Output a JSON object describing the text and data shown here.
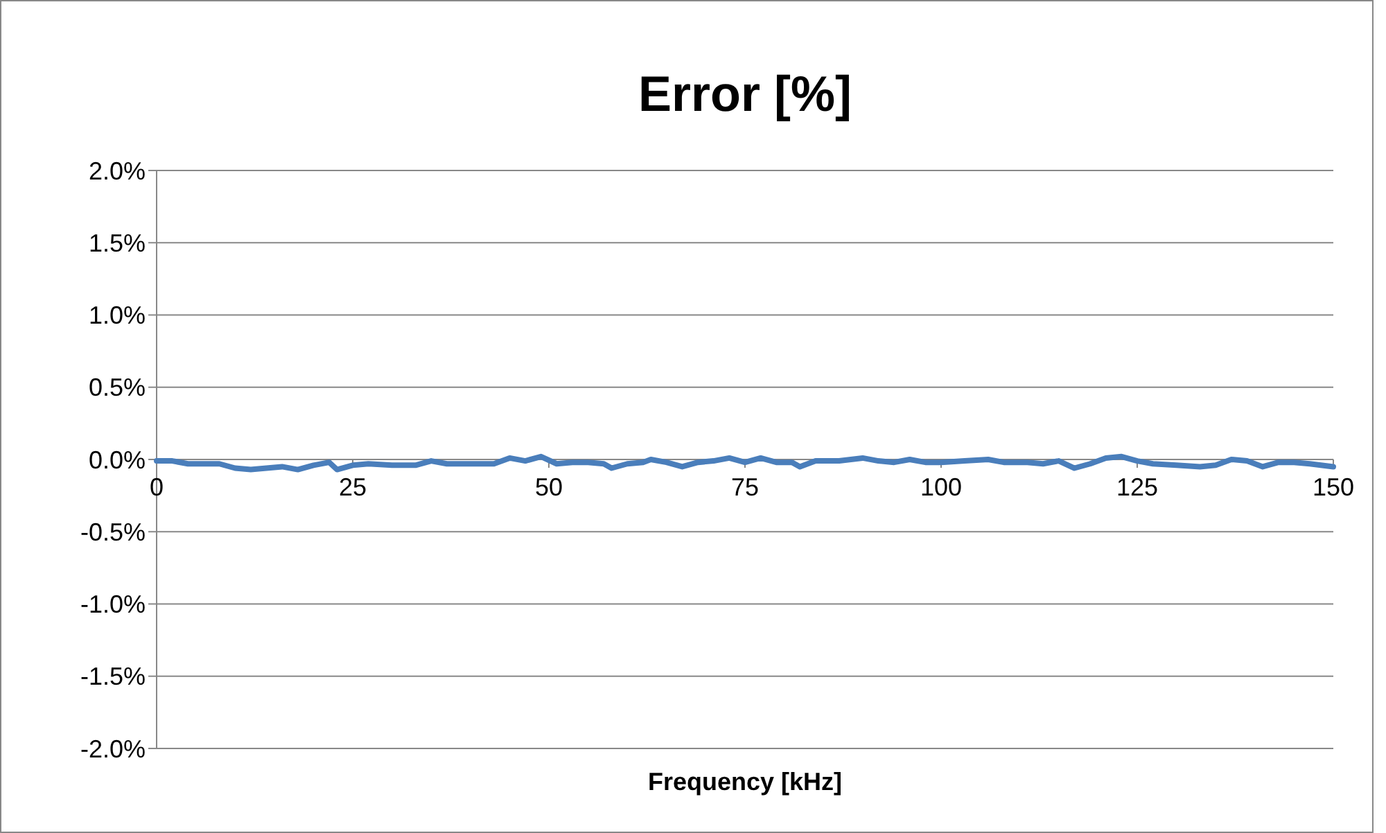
{
  "chart_data": {
    "type": "line",
    "title": "Error [%]",
    "xlabel": "Frequency [kHz]",
    "x": [
      0,
      2,
      4,
      6,
      8,
      10,
      12,
      14,
      16,
      18,
      20,
      22,
      23,
      25,
      27,
      30,
      33,
      35,
      37,
      40,
      43,
      45,
      47,
      49,
      51,
      53,
      55,
      57,
      58,
      60,
      62,
      63,
      65,
      67,
      69,
      71,
      73,
      75,
      77,
      79,
      81,
      82,
      84,
      87,
      90,
      92,
      94,
      96,
      98,
      100,
      103,
      106,
      108,
      111,
      113,
      115,
      117,
      119,
      121,
      123,
      125,
      127,
      130,
      133,
      135,
      137,
      139,
      141,
      143,
      145,
      147,
      150
    ],
    "series": [
      {
        "color": "#4a7ebb",
        "values": [
          -0.01,
          -0.01,
          -0.03,
          -0.03,
          -0.03,
          -0.06,
          -0.07,
          -0.06,
          -0.05,
          -0.07,
          -0.04,
          -0.02,
          -0.07,
          -0.04,
          -0.03,
          -0.04,
          -0.04,
          -0.01,
          -0.03,
          -0.03,
          -0.03,
          0.01,
          -0.01,
          0.02,
          -0.03,
          -0.02,
          -0.02,
          -0.03,
          -0.06,
          -0.03,
          -0.02,
          0.0,
          -0.02,
          -0.05,
          -0.02,
          -0.01,
          0.01,
          -0.02,
          0.01,
          -0.02,
          -0.02,
          -0.05,
          -0.01,
          -0.01,
          0.01,
          -0.01,
          -0.02,
          0.0,
          -0.02,
          -0.02,
          -0.01,
          0.0,
          -0.02,
          -0.02,
          -0.03,
          -0.01,
          -0.06,
          -0.03,
          0.01,
          0.02,
          -0.01,
          -0.03,
          -0.04,
          -0.05,
          -0.04,
          0.0,
          -0.01,
          -0.05,
          -0.02,
          -0.02,
          -0.03,
          -0.05
        ]
      }
    ],
    "xlim": [
      0,
      150
    ],
    "xticks": [
      0,
      25,
      50,
      75,
      100,
      125,
      150
    ],
    "ylim": [
      -2,
      2
    ],
    "yticks": [
      {
        "value": -2,
        "label": "-2.0%"
      },
      {
        "value": -1.5,
        "label": "-1.5%"
      },
      {
        "value": -1,
        "label": "-1.0%"
      },
      {
        "value": -0.5,
        "label": "-0.5%"
      },
      {
        "value": 0,
        "label": "0.0%"
      },
      {
        "value": 0.5,
        "label": "0.5%"
      },
      {
        "value": 1,
        "label": "1.0%"
      },
      {
        "value": 1.5,
        "label": "1.5%"
      },
      {
        "value": 2,
        "label": "2.0%"
      }
    ],
    "grid": "y",
    "marker": "none",
    "line_style": "solid"
  }
}
